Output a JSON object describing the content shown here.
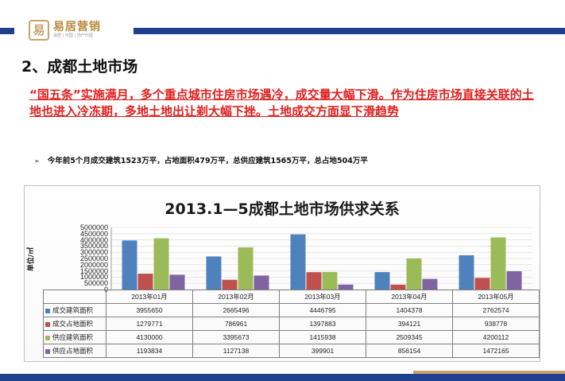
{
  "header": {
    "logo_mark": "易",
    "brand_name": "易居营销",
    "brand_sub": "易居 | 中国 | 地产代理"
  },
  "title": "2、成都土地市场",
  "lead": "“国五条”实施满月，多个重点城市住房市场遇冷，成交量大幅下滑。作为住房市场直接关联的土地也进入冷冻期，多地土地出让剃大幅下挫。土地成交方面显下滑趋势",
  "bullet": {
    "arrow": "➢",
    "text": "今年前5个月成交建筑1523万平，占地面积479万平，总供应建筑1565万平，总占地504万平"
  },
  "chart_data": {
    "type": "bar",
    "title": "2013.1—5成都土地市场供求关系",
    "ylabel": "单位/㎡",
    "ylim": [
      0,
      5000000
    ],
    "yticks": [
      "5000000",
      "4500000",
      "4000000",
      "3500000",
      "3000000",
      "2500000",
      "2000000",
      "1500000",
      "1000000",
      "500000",
      "0"
    ],
    "categories": [
      "2013年01月",
      "2013年02月",
      "2013年03月",
      "2013年04月",
      "2013年05月"
    ],
    "series": [
      {
        "name": "成交建筑面积",
        "color": "#4f81bd",
        "values": [
          3955650,
          2665496,
          4446795,
          1404378,
          2762574
        ]
      },
      {
        "name": "成交占地面积",
        "color": "#c0504d",
        "values": [
          1279771,
          786961,
          1397883,
          394121,
          938778
        ]
      },
      {
        "name": "供应建筑面积",
        "color": "#9bbb59",
        "values": [
          4130000,
          3395673,
          1415938,
          2509345,
          4200112
        ]
      },
      {
        "name": "供应占地面积",
        "color": "#8064a2",
        "values": [
          1193834,
          1127138,
          399901,
          856154,
          1472165
        ]
      }
    ],
    "table": [
      [
        "3955650",
        "2665496",
        "4446795",
        "1404378",
        "2762574"
      ],
      [
        "1279771",
        "786961",
        "1397883",
        "394121",
        "938778"
      ],
      [
        "4130000",
        "3395673",
        "1415938",
        "2509345",
        "4200112"
      ],
      [
        "1193834",
        "1127138",
        "399901",
        "856154",
        "1472165"
      ]
    ],
    "grid": true,
    "legend": "in data table"
  }
}
